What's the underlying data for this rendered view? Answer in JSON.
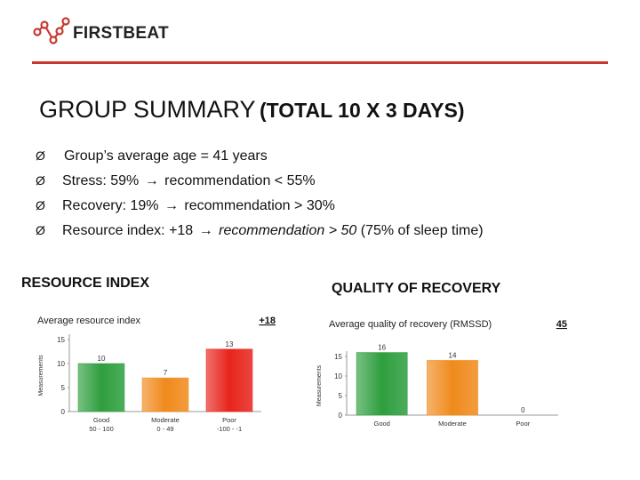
{
  "brand": {
    "name": "FIRSTBEAT",
    "accent": "#c8382f"
  },
  "title": {
    "main": "GROUP SUMMARY",
    "sub": "(TOTAL 10 X 3 DAYS)"
  },
  "bullets": [
    {
      "marker": "Ø",
      "text": "Group’s average age = 41 years"
    },
    {
      "marker": "Ø",
      "pre": "Stress: 59%",
      "post": "recommendation < 55%"
    },
    {
      "marker": "Ø",
      "pre": "Recovery: 19%",
      "post": "recommendation > 30%"
    },
    {
      "marker": "Ø",
      "pre": "Resource index: +18",
      "post_italic": "recommendation",
      "post_italic2": " > 50",
      "post_plain": " (75% of sleep time)"
    }
  ],
  "sections": {
    "left": "RESOURCE INDEX",
    "right": "QUALITY OF RECOVERY"
  },
  "chart_data": [
    {
      "type": "bar",
      "title": "Average resource index",
      "summary_value": "+18",
      "ylabel": "Measurements",
      "ylim": [
        0,
        15
      ],
      "yticks": [
        0,
        5,
        10,
        15
      ],
      "categories": [
        "Good",
        "Moderate",
        "Poor"
      ],
      "category_sublabels": [
        "50 - 100",
        "0 - 49",
        "-100 - -1"
      ],
      "values": [
        10,
        7,
        13
      ],
      "colors": [
        "#2e9e3e",
        "#f08a1c",
        "#e8241c"
      ]
    },
    {
      "type": "bar",
      "title": "Average quality of recovery (RMSSD)",
      "summary_value": "45",
      "ylabel": "Measurements",
      "ylim": [
        0,
        15
      ],
      "yticks": [
        0,
        5,
        10,
        15
      ],
      "categories": [
        "Good",
        "Moderate",
        "Poor"
      ],
      "values": [
        16,
        14,
        0
      ],
      "colors": [
        "#2e9e3e",
        "#f08a1c",
        "#e8241c"
      ]
    }
  ]
}
